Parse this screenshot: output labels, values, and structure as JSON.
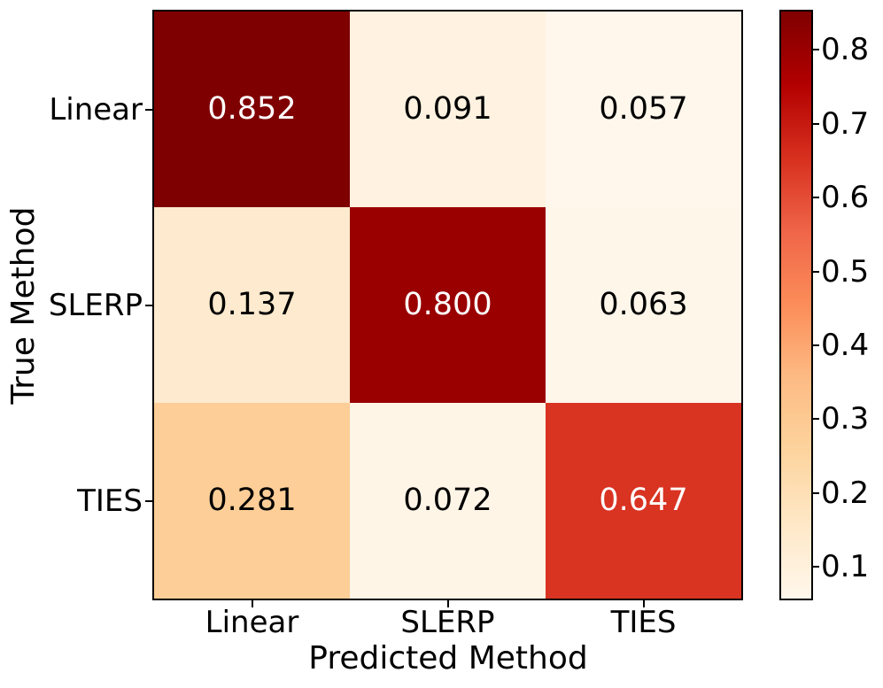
{
  "figure": {
    "background": "#ffffff",
    "axis_color": "#000000"
  },
  "chart_data": {
    "type": "heatmap",
    "title": "",
    "xlabel": "Predicted Method",
    "ylabel": "True Method",
    "x_categories": [
      "Linear",
      "SLERP",
      "TIES"
    ],
    "y_categories": [
      "Linear",
      "SLERP",
      "TIES"
    ],
    "matrix": [
      [
        0.852,
        0.091,
        0.057
      ],
      [
        0.137,
        0.8,
        0.063
      ],
      [
        0.281,
        0.072,
        0.647
      ]
    ],
    "cell_labels": [
      [
        "0.852",
        "0.091",
        "0.057"
      ],
      [
        "0.137",
        "0.800",
        "0.063"
      ],
      [
        "0.281",
        "0.072",
        "0.647"
      ]
    ],
    "vmin": 0.057,
    "vmax": 0.852,
    "colormap": "OrRd",
    "colormap_stops": [
      "#fff7ec",
      "#fee8c8",
      "#fdd49e",
      "#fdbb84",
      "#fc8d59",
      "#ef6548",
      "#d7301f",
      "#b30000",
      "#7f0000"
    ],
    "colorbar_ticks": [
      "0.1",
      "0.2",
      "0.3",
      "0.4",
      "0.5",
      "0.6",
      "0.7",
      "0.8"
    ],
    "colorbar_tick_values": [
      0.1,
      0.2,
      0.3,
      0.4,
      0.5,
      0.6,
      0.7,
      0.8
    ],
    "cell_text_colors": {
      "on_light": "#000000",
      "on_dark": "#ffffff"
    },
    "legend_position": "right-colorbar",
    "grid": false
  }
}
